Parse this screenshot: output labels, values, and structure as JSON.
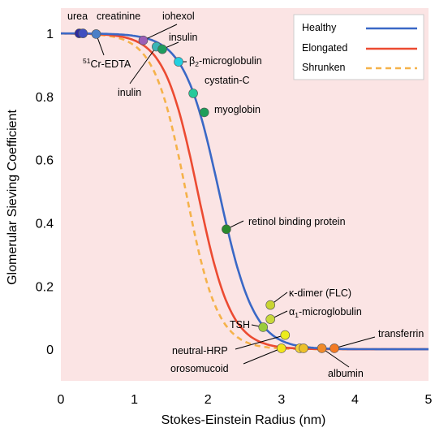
{
  "chart_data": {
    "type": "line",
    "xlabel": "Stokes-Einstein Radius (nm)",
    "ylabel": "Glomerular Sieving Coefficient",
    "xlim": [
      0,
      5
    ],
    "ylim": [
      -0.1,
      1.08
    ],
    "x_ticks": [
      "0",
      "1",
      "2",
      "3",
      "4",
      "5"
    ],
    "y_ticks": [
      "0",
      "0.2",
      "0.4",
      "0.6",
      "0.8",
      "1"
    ],
    "grid": false,
    "background_color": "#fbe4e4",
    "legend_position": "top-right",
    "series": [
      {
        "name": "Healthy",
        "color": "#3a68c6",
        "style": "solid",
        "midpoint": 2.15,
        "steepness": 4.2
      },
      {
        "name": "Elongated",
        "color": "#ec4b32",
        "style": "solid",
        "midpoint": 1.86,
        "steepness": 4.4
      },
      {
        "name": "Shrunken",
        "color": "#f5b24a",
        "style": "dashed",
        "midpoint": 1.7,
        "steepness": 4.6
      }
    ],
    "points": [
      {
        "label": "urea",
        "x": 0.25,
        "y": 1.0,
        "color": "#2d2a9e"
      },
      {
        "label": "creatinine",
        "x": 0.3,
        "y": 1.0,
        "color": "#3f4fc0"
      },
      {
        "label": "51Cr-EDTA",
        "x": 0.48,
        "y": 0.998,
        "color": "#4a7fc7"
      },
      {
        "label": "iohexol",
        "x": 1.12,
        "y": 0.978,
        "color": "#9b5fb8"
      },
      {
        "label": "inulin",
        "x": 1.3,
        "y": 0.958,
        "color": "#39b5b5"
      },
      {
        "label": "insulin",
        "x": 1.38,
        "y": 0.95,
        "color": "#1f9c5e"
      },
      {
        "label": "β2-microglobulin",
        "x": 1.6,
        "y": 0.91,
        "color": "#22d0e0"
      },
      {
        "label": "cystatin-C",
        "x": 1.8,
        "y": 0.81,
        "color": "#26c99a"
      },
      {
        "label": "myoglobin",
        "x": 1.95,
        "y": 0.75,
        "color": "#1e9e5a"
      },
      {
        "label": "retinol binding protein",
        "x": 2.25,
        "y": 0.38,
        "color": "#2a8a2e"
      },
      {
        "label": "κ-dimer (FLC)",
        "x": 2.85,
        "y": 0.14,
        "color": "#c9d432"
      },
      {
        "label": "α1-microglobulin",
        "x": 2.85,
        "y": 0.095,
        "color": "#c8d83a"
      },
      {
        "label": "TSH",
        "x": 2.75,
        "y": 0.07,
        "color": "#9acb3c"
      },
      {
        "label": "neutral-HRP",
        "x": 3.05,
        "y": 0.045,
        "color": "#ecec1e"
      },
      {
        "label": "orosomucoid",
        "x": 3.0,
        "y": 0.003,
        "color": "#f2e41a"
      },
      {
        "label": "",
        "x": 3.25,
        "y": 0.003,
        "color": "#f2d23a"
      },
      {
        "label": "",
        "x": 3.3,
        "y": 0.003,
        "color": "#ecc02a"
      },
      {
        "label": "albumin",
        "x": 3.55,
        "y": 0.003,
        "color": "#f08a2a"
      },
      {
        "label": "transferrin",
        "x": 3.72,
        "y": 0.003,
        "color": "#f37a24"
      }
    ]
  },
  "labels": {
    "urea": "urea",
    "creatinine": "creatinine",
    "iohexol": "iohexol",
    "insulin": "insulin",
    "cr_sup": "51",
    "cr_edta": "Cr-EDTA",
    "b2_pre": "β",
    "b2_sub": "2",
    "b2_post": "-microglobulin",
    "inulin": "inulin",
    "cystatin": "cystatin-C",
    "myoglobin": "myoglobin",
    "rbp": "retinol binding protein",
    "kappa": "κ-dimer (FLC)",
    "a1_pre": "α",
    "a1_sub": "1",
    "a1_post": "-microglobulin",
    "tsh": "TSH",
    "transferrin": "transferrin",
    "neutral_hrp": "neutral-HRP",
    "orosomucoid": "orosomucoid",
    "albumin": "albumin"
  }
}
